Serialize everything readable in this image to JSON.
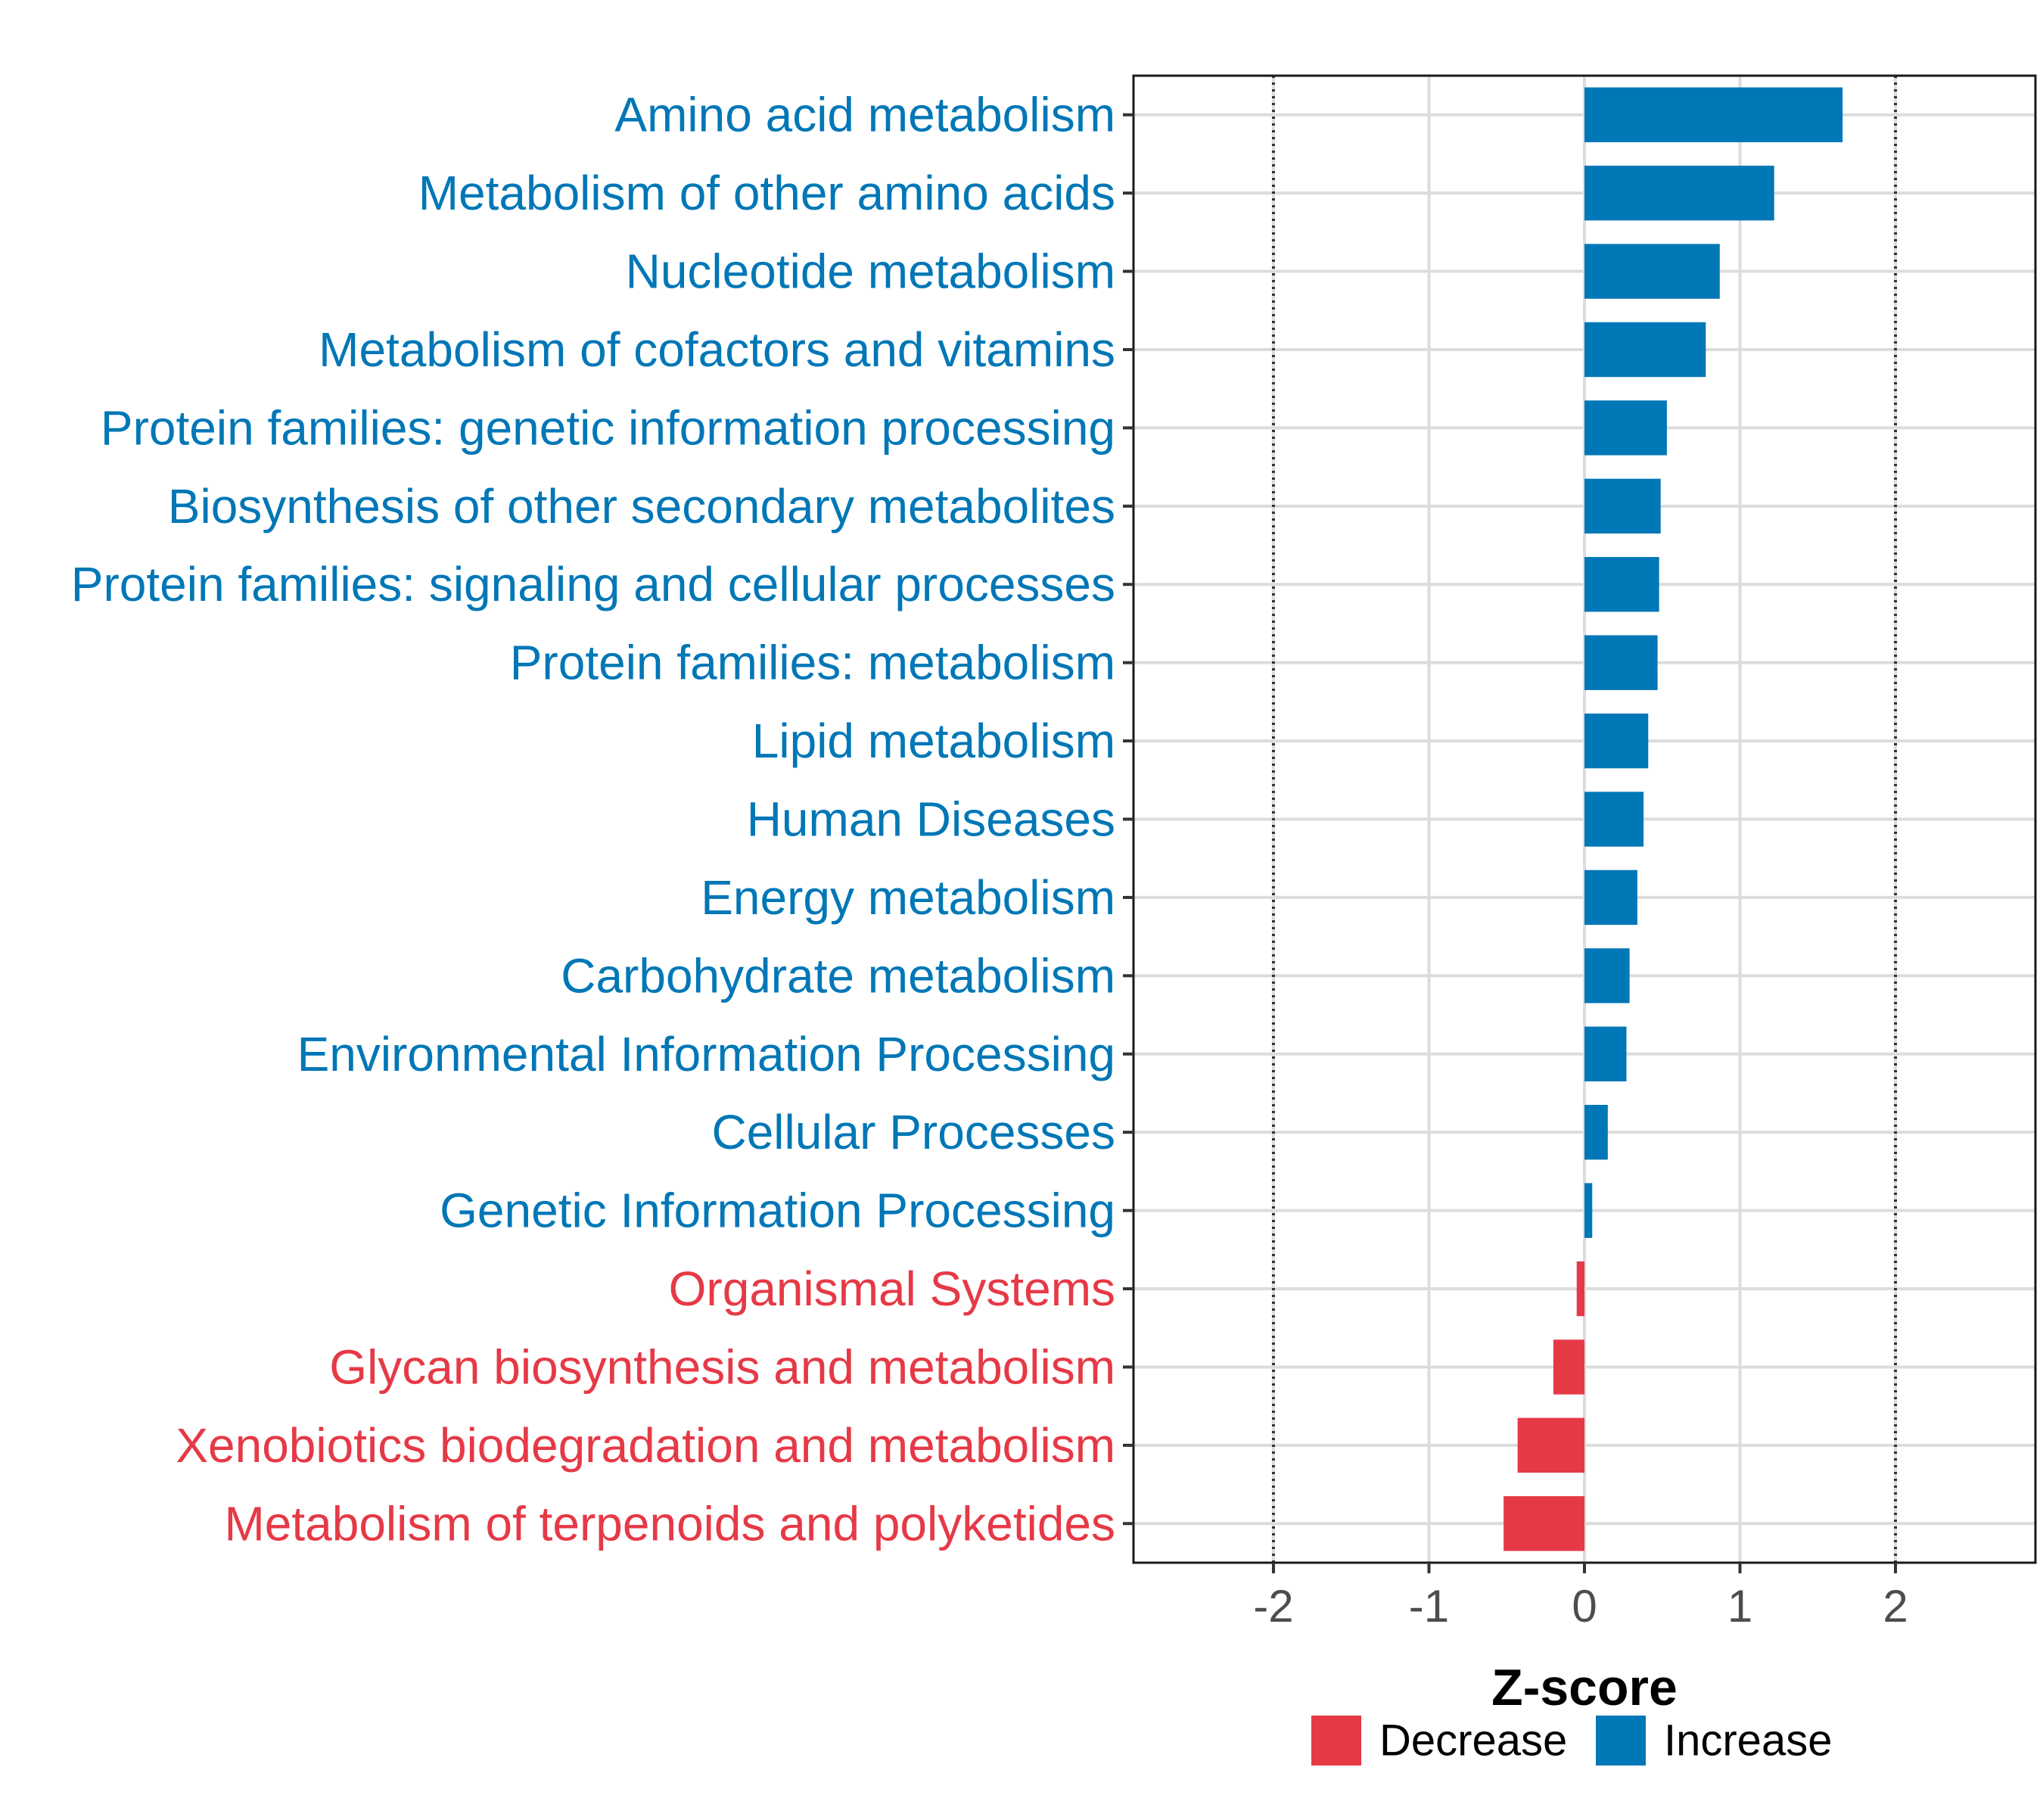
{
  "chart_data": {
    "type": "bar",
    "orientation": "horizontal",
    "xlabel": "Z-score",
    "xlim": [
      -2.9,
      2.9
    ],
    "xticks": [
      -2,
      -1,
      0,
      1,
      2
    ],
    "xtick_labels": [
      "-2",
      "-1",
      "0",
      "1",
      "2"
    ],
    "reference_lines": [
      -2,
      2
    ],
    "grid": true,
    "legend_position": "bottom",
    "colors": {
      "Decrease": "#E63946",
      "Increase": "#0077B6"
    },
    "legend": [
      {
        "label": "Decrease",
        "color": "#E63946"
      },
      {
        "label": "Increase",
        "color": "#0077B6"
      }
    ],
    "categories": [
      "Amino acid metabolism",
      "Metabolism of other amino acids",
      "Nucleotide metabolism",
      "Metabolism of cofactors and vitamins",
      "Protein families: genetic information processing",
      "Biosynthesis of other secondary metabolites",
      "Protein families: signaling and cellular processes",
      "Protein families: metabolism",
      "Lipid metabolism",
      "Human Diseases",
      "Energy metabolism",
      "Carbohydrate metabolism",
      "Environmental Information Processing",
      "Cellular Processes",
      "Genetic Information Processing",
      "Organismal Systems",
      "Glycan biosynthesis and metabolism",
      "Xenobiotics biodegradation and metabolism",
      "Metabolism of terpenoids and polyketides"
    ],
    "values": [
      1.66,
      1.22,
      0.87,
      0.78,
      0.53,
      0.49,
      0.48,
      0.47,
      0.41,
      0.38,
      0.34,
      0.29,
      0.27,
      0.15,
      0.05,
      -0.05,
      -0.2,
      -0.43,
      -0.52
    ],
    "groups": [
      "Increase",
      "Increase",
      "Increase",
      "Increase",
      "Increase",
      "Increase",
      "Increase",
      "Increase",
      "Increase",
      "Increase",
      "Increase",
      "Increase",
      "Increase",
      "Increase",
      "Increase",
      "Decrease",
      "Decrease",
      "Decrease",
      "Decrease"
    ]
  }
}
